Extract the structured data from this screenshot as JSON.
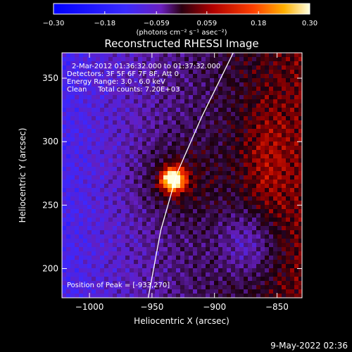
{
  "chart_data": {
    "type": "heatmap",
    "title": "Reconstructed RHESSI Image",
    "xlabel": "Heliocentric X (arcsec)",
    "ylabel": "Heliocentric Y (arcsec)",
    "xlim": [
      -1022,
      -830
    ],
    "ylim": [
      177,
      370
    ],
    "x_ticks": [
      {
        "value": -1000,
        "label": "−1000"
      },
      {
        "value": -950,
        "label": "−950"
      },
      {
        "value": -900,
        "label": "−900"
      },
      {
        "value": -850,
        "label": "−850"
      }
    ],
    "y_ticks": [
      {
        "value": 350,
        "label": "350"
      },
      {
        "value": 300,
        "label": "300"
      },
      {
        "value": 250,
        "label": "250"
      },
      {
        "value": 200,
        "label": "200"
      }
    ],
    "colorbar": {
      "range": [
        -0.3,
        0.3
      ],
      "ticks": [
        {
          "value": -0.3,
          "label": "−0.30"
        },
        {
          "value": -0.18,
          "label": "−0.18"
        },
        {
          "value": -0.059,
          "label": "−0.059"
        },
        {
          "value": 0.059,
          "label": "0.059"
        },
        {
          "value": 0.18,
          "label": "0.18"
        },
        {
          "value": 0.3,
          "label": "0.30"
        }
      ],
      "unit_label": "(photons cm⁻² s⁻¹ asec⁻²)"
    },
    "annotations": [
      "2-Mar-2012 01:36:32.000 to 01:37:32.000",
      "Detectors: 3F 5F 6F 7F 8F, Att 0",
      "Energy Range: 3.0 - 6.0 keV",
      "Clean     Total counts: 7.20E+03"
    ],
    "peak_label": "Position of Peak = [-933,270]",
    "peak": {
      "x": -933,
      "y": 270,
      "value": 0.3
    },
    "limb_curve": [
      [
        -953,
        177
      ],
      [
        -943,
        230
      ],
      [
        -930,
        275
      ],
      [
        -910,
        320
      ],
      [
        -885,
        370
      ]
    ],
    "grid": false
  },
  "footer": {
    "timestamp": "9-May-2022 02:36"
  }
}
